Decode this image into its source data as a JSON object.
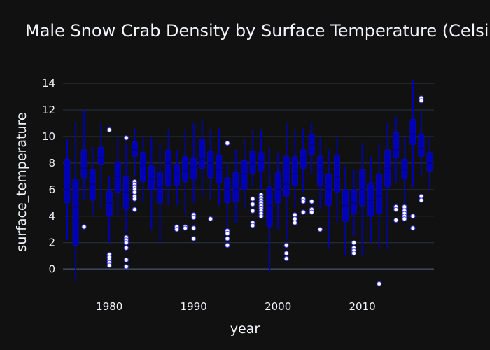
{
  "chart_data": {
    "type": "box",
    "title": "Male Snow Crab Density by Surface Temperature (Celsius)",
    "xlabel": "year",
    "ylabel": "surface_temperature",
    "x_ticks": [
      1980,
      1990,
      2000,
      2010
    ],
    "y_ticks": [
      0,
      2,
      4,
      6,
      8,
      10,
      12,
      14
    ],
    "xlim": [
      1974.5,
      2018.5
    ],
    "ylim": [
      -1.6,
      14.9
    ],
    "grid": "horizontal",
    "legend": "none",
    "colors": {
      "background": "#111111",
      "grid": "#283442",
      "box_fill": "#0000b8",
      "box_line": "#0a0aa0",
      "outlier_fill": "#ffffff",
      "outlier_line": "#4444ff",
      "text": "#f2f5fa"
    },
    "boxes": [
      {
        "year": 1975,
        "min": 2.2,
        "q1": 5.0,
        "median": 6.0,
        "q3": 8.3,
        "max": 9.8,
        "outliers": []
      },
      {
        "year": 1976,
        "min": -0.9,
        "q1": 1.8,
        "median": 4.7,
        "q3": 6.8,
        "max": 11.1,
        "outliers": []
      },
      {
        "year": 1977,
        "min": 5.2,
        "q1": 6.9,
        "median": 7.6,
        "q3": 9.0,
        "max": 12.0,
        "outliers": [
          3.2
        ]
      },
      {
        "year": 1978,
        "min": 4.0,
        "q1": 5.2,
        "median": 6.4,
        "q3": 7.5,
        "max": 9.2,
        "outliers": []
      },
      {
        "year": 1979,
        "min": 4.5,
        "q1": 7.9,
        "median": 8.4,
        "q3": 9.2,
        "max": 11.0,
        "outliers": []
      },
      {
        "year": 1980,
        "min": 2.0,
        "q1": 4.0,
        "median": 5.0,
        "q3": 5.9,
        "max": 7.0,
        "outliers": [
          10.5,
          1.1,
          0.9,
          0.7,
          0.5,
          0.3
        ]
      },
      {
        "year": 1981,
        "min": 4.0,
        "q1": 5.8,
        "median": 7.0,
        "q3": 8.1,
        "max": 10.0,
        "outliers": []
      },
      {
        "year": 1982,
        "min": 2.8,
        "q1": 4.5,
        "median": 5.8,
        "q3": 7.0,
        "max": 9.5,
        "outliers": [
          9.9,
          2.4,
          2.2,
          2.0,
          1.6,
          0.7,
          0.2
        ]
      },
      {
        "year": 1983,
        "min": 7.0,
        "q1": 8.5,
        "median": 9.0,
        "q3": 9.6,
        "max": 10.6,
        "outliers": [
          6.6,
          6.4,
          6.2,
          6.0,
          5.8,
          5.5,
          5.3,
          4.5
        ]
      },
      {
        "year": 1984,
        "min": 5.0,
        "q1": 6.6,
        "median": 7.8,
        "q3": 8.8,
        "max": 10.0,
        "outliers": []
      },
      {
        "year": 1985,
        "min": 3.0,
        "q1": 6.0,
        "median": 6.8,
        "q3": 7.8,
        "max": 10.0,
        "outliers": []
      },
      {
        "year": 1986,
        "min": 2.0,
        "q1": 5.0,
        "median": 6.2,
        "q3": 7.3,
        "max": 9.5,
        "outliers": []
      },
      {
        "year": 1987,
        "min": 4.8,
        "q1": 6.3,
        "median": 8.0,
        "q3": 9.0,
        "max": 10.5,
        "outliers": []
      },
      {
        "year": 1988,
        "min": 4.8,
        "q1": 6.3,
        "median": 7.2,
        "q3": 7.9,
        "max": 9.0,
        "outliers": [
          3.2,
          3.0
        ]
      },
      {
        "year": 1989,
        "min": 4.0,
        "q1": 6.6,
        "median": 7.4,
        "q3": 8.5,
        "max": 10.5,
        "outliers": [
          3.2,
          3.1
        ]
      },
      {
        "year": 1990,
        "min": 5.0,
        "q1": 6.8,
        "median": 7.7,
        "q3": 8.4,
        "max": 11.0,
        "outliers": [
          4.1,
          3.9,
          3.1,
          2.3
        ]
      },
      {
        "year": 1991,
        "min": 5.5,
        "q1": 7.6,
        "median": 8.3,
        "q3": 9.8,
        "max": 11.3,
        "outliers": []
      },
      {
        "year": 1992,
        "min": 5.2,
        "q1": 6.9,
        "median": 8.0,
        "q3": 8.9,
        "max": 10.5,
        "outliers": [
          3.8
        ]
      },
      {
        "year": 1993,
        "min": 4.8,
        "q1": 6.5,
        "median": 7.5,
        "q3": 8.6,
        "max": 10.6,
        "outliers": []
      },
      {
        "year": 1994,
        "min": 3.2,
        "q1": 5.0,
        "median": 6.0,
        "q3": 6.9,
        "max": 8.0,
        "outliers": [
          9.5,
          2.9,
          2.7,
          2.3,
          1.8
        ]
      },
      {
        "year": 1995,
        "min": 3.5,
        "q1": 5.1,
        "median": 6.0,
        "q3": 7.3,
        "max": 9.0,
        "outliers": []
      },
      {
        "year": 1996,
        "min": 4.5,
        "q1": 6.0,
        "median": 7.2,
        "q3": 8.2,
        "max": 9.8,
        "outliers": []
      },
      {
        "year": 1997,
        "min": 6.2,
        "q1": 7.2,
        "median": 7.9,
        "q3": 8.9,
        "max": 10.5,
        "outliers": [
          5.3,
          4.9,
          4.4,
          3.5,
          3.3
        ]
      },
      {
        "year": 1998,
        "min": 6.0,
        "q1": 7.4,
        "median": 8.1,
        "q3": 8.8,
        "max": 10.5,
        "outliers": [
          5.6,
          5.4,
          5.2,
          5.0,
          4.8,
          4.6,
          4.4,
          4.2,
          4.0
        ]
      },
      {
        "year": 1999,
        "min": -0.2,
        "q1": 3.2,
        "median": 4.8,
        "q3": 6.2,
        "max": 9.2,
        "outliers": []
      },
      {
        "year": 2000,
        "min": 3.0,
        "q1": 5.0,
        "median": 6.0,
        "q3": 7.3,
        "max": 8.8,
        "outliers": []
      },
      {
        "year": 2001,
        "min": 2.2,
        "q1": 5.5,
        "median": 6.4,
        "q3": 8.5,
        "max": 11.0,
        "outliers": [
          1.8,
          1.2,
          0.8
        ]
      },
      {
        "year": 2002,
        "min": 4.6,
        "q1": 6.3,
        "median": 7.2,
        "q3": 8.5,
        "max": 10.5,
        "outliers": [
          4.1,
          3.8,
          3.5
        ]
      },
      {
        "year": 2003,
        "min": 5.8,
        "q1": 7.6,
        "median": 8.4,
        "q3": 9.0,
        "max": 10.6,
        "outliers": [
          5.3,
          5.1,
          4.3
        ]
      },
      {
        "year": 2004,
        "min": 7.2,
        "q1": 8.6,
        "median": 9.4,
        "q3": 10.2,
        "max": 11.0,
        "outliers": [
          5.1,
          4.5,
          4.3
        ]
      },
      {
        "year": 2005,
        "min": 4.5,
        "q1": 6.3,
        "median": 7.5,
        "q3": 8.5,
        "max": 10.0,
        "outliers": [
          3.0
        ]
      },
      {
        "year": 2006,
        "min": 1.5,
        "q1": 4.8,
        "median": 6.0,
        "q3": 7.2,
        "max": 9.0,
        "outliers": []
      },
      {
        "year": 2007,
        "min": 3.5,
        "q1": 5.8,
        "median": 7.0,
        "q3": 8.6,
        "max": 10.0,
        "outliers": []
      },
      {
        "year": 2008,
        "min": 1.0,
        "q1": 3.6,
        "median": 4.8,
        "q3": 6.0,
        "max": 7.8,
        "outliers": []
      },
      {
        "year": 2009,
        "min": 2.5,
        "q1": 4.2,
        "median": 5.0,
        "q3": 6.0,
        "max": 7.5,
        "outliers": [
          2.0,
          1.6,
          1.4,
          1.2
        ]
      },
      {
        "year": 2010,
        "min": 1.0,
        "q1": 4.8,
        "median": 6.0,
        "q3": 7.5,
        "max": 9.5,
        "outliers": []
      },
      {
        "year": 2011,
        "min": 2.0,
        "q1": 4.0,
        "median": 5.2,
        "q3": 6.5,
        "max": 8.5,
        "outliers": []
      },
      {
        "year": 2012,
        "min": 1.5,
        "q1": 4.2,
        "median": 5.5,
        "q3": 7.2,
        "max": 9.5,
        "outliers": [
          -1.1
        ]
      },
      {
        "year": 2013,
        "min": 1.5,
        "q1": 6.2,
        "median": 7.6,
        "q3": 9.0,
        "max": 11.0,
        "outliers": []
      },
      {
        "year": 2014,
        "min": 6.5,
        "q1": 8.4,
        "median": 9.0,
        "q3": 10.3,
        "max": 11.5,
        "outliers": [
          4.7,
          4.5,
          3.7
        ]
      },
      {
        "year": 2015,
        "min": 5.0,
        "q1": 6.8,
        "median": 7.5,
        "q3": 8.3,
        "max": 10.0,
        "outliers": [
          4.7,
          4.4,
          4.2,
          4.0,
          3.8
        ]
      },
      {
        "year": 2016,
        "min": 6.2,
        "q1": 9.4,
        "median": 10.2,
        "q3": 11.3,
        "max": 14.2,
        "outliers": [
          4.0,
          3.1
        ]
      },
      {
        "year": 2017,
        "min": 7.0,
        "q1": 8.5,
        "median": 9.1,
        "q3": 10.2,
        "max": 12.0,
        "outliers": [
          12.9,
          12.7,
          5.5,
          5.2
        ]
      },
      {
        "year": 2018,
        "min": 6.0,
        "q1": 7.4,
        "median": 8.0,
        "q3": 8.8,
        "max": 10.0,
        "outliers": []
      }
    ]
  }
}
